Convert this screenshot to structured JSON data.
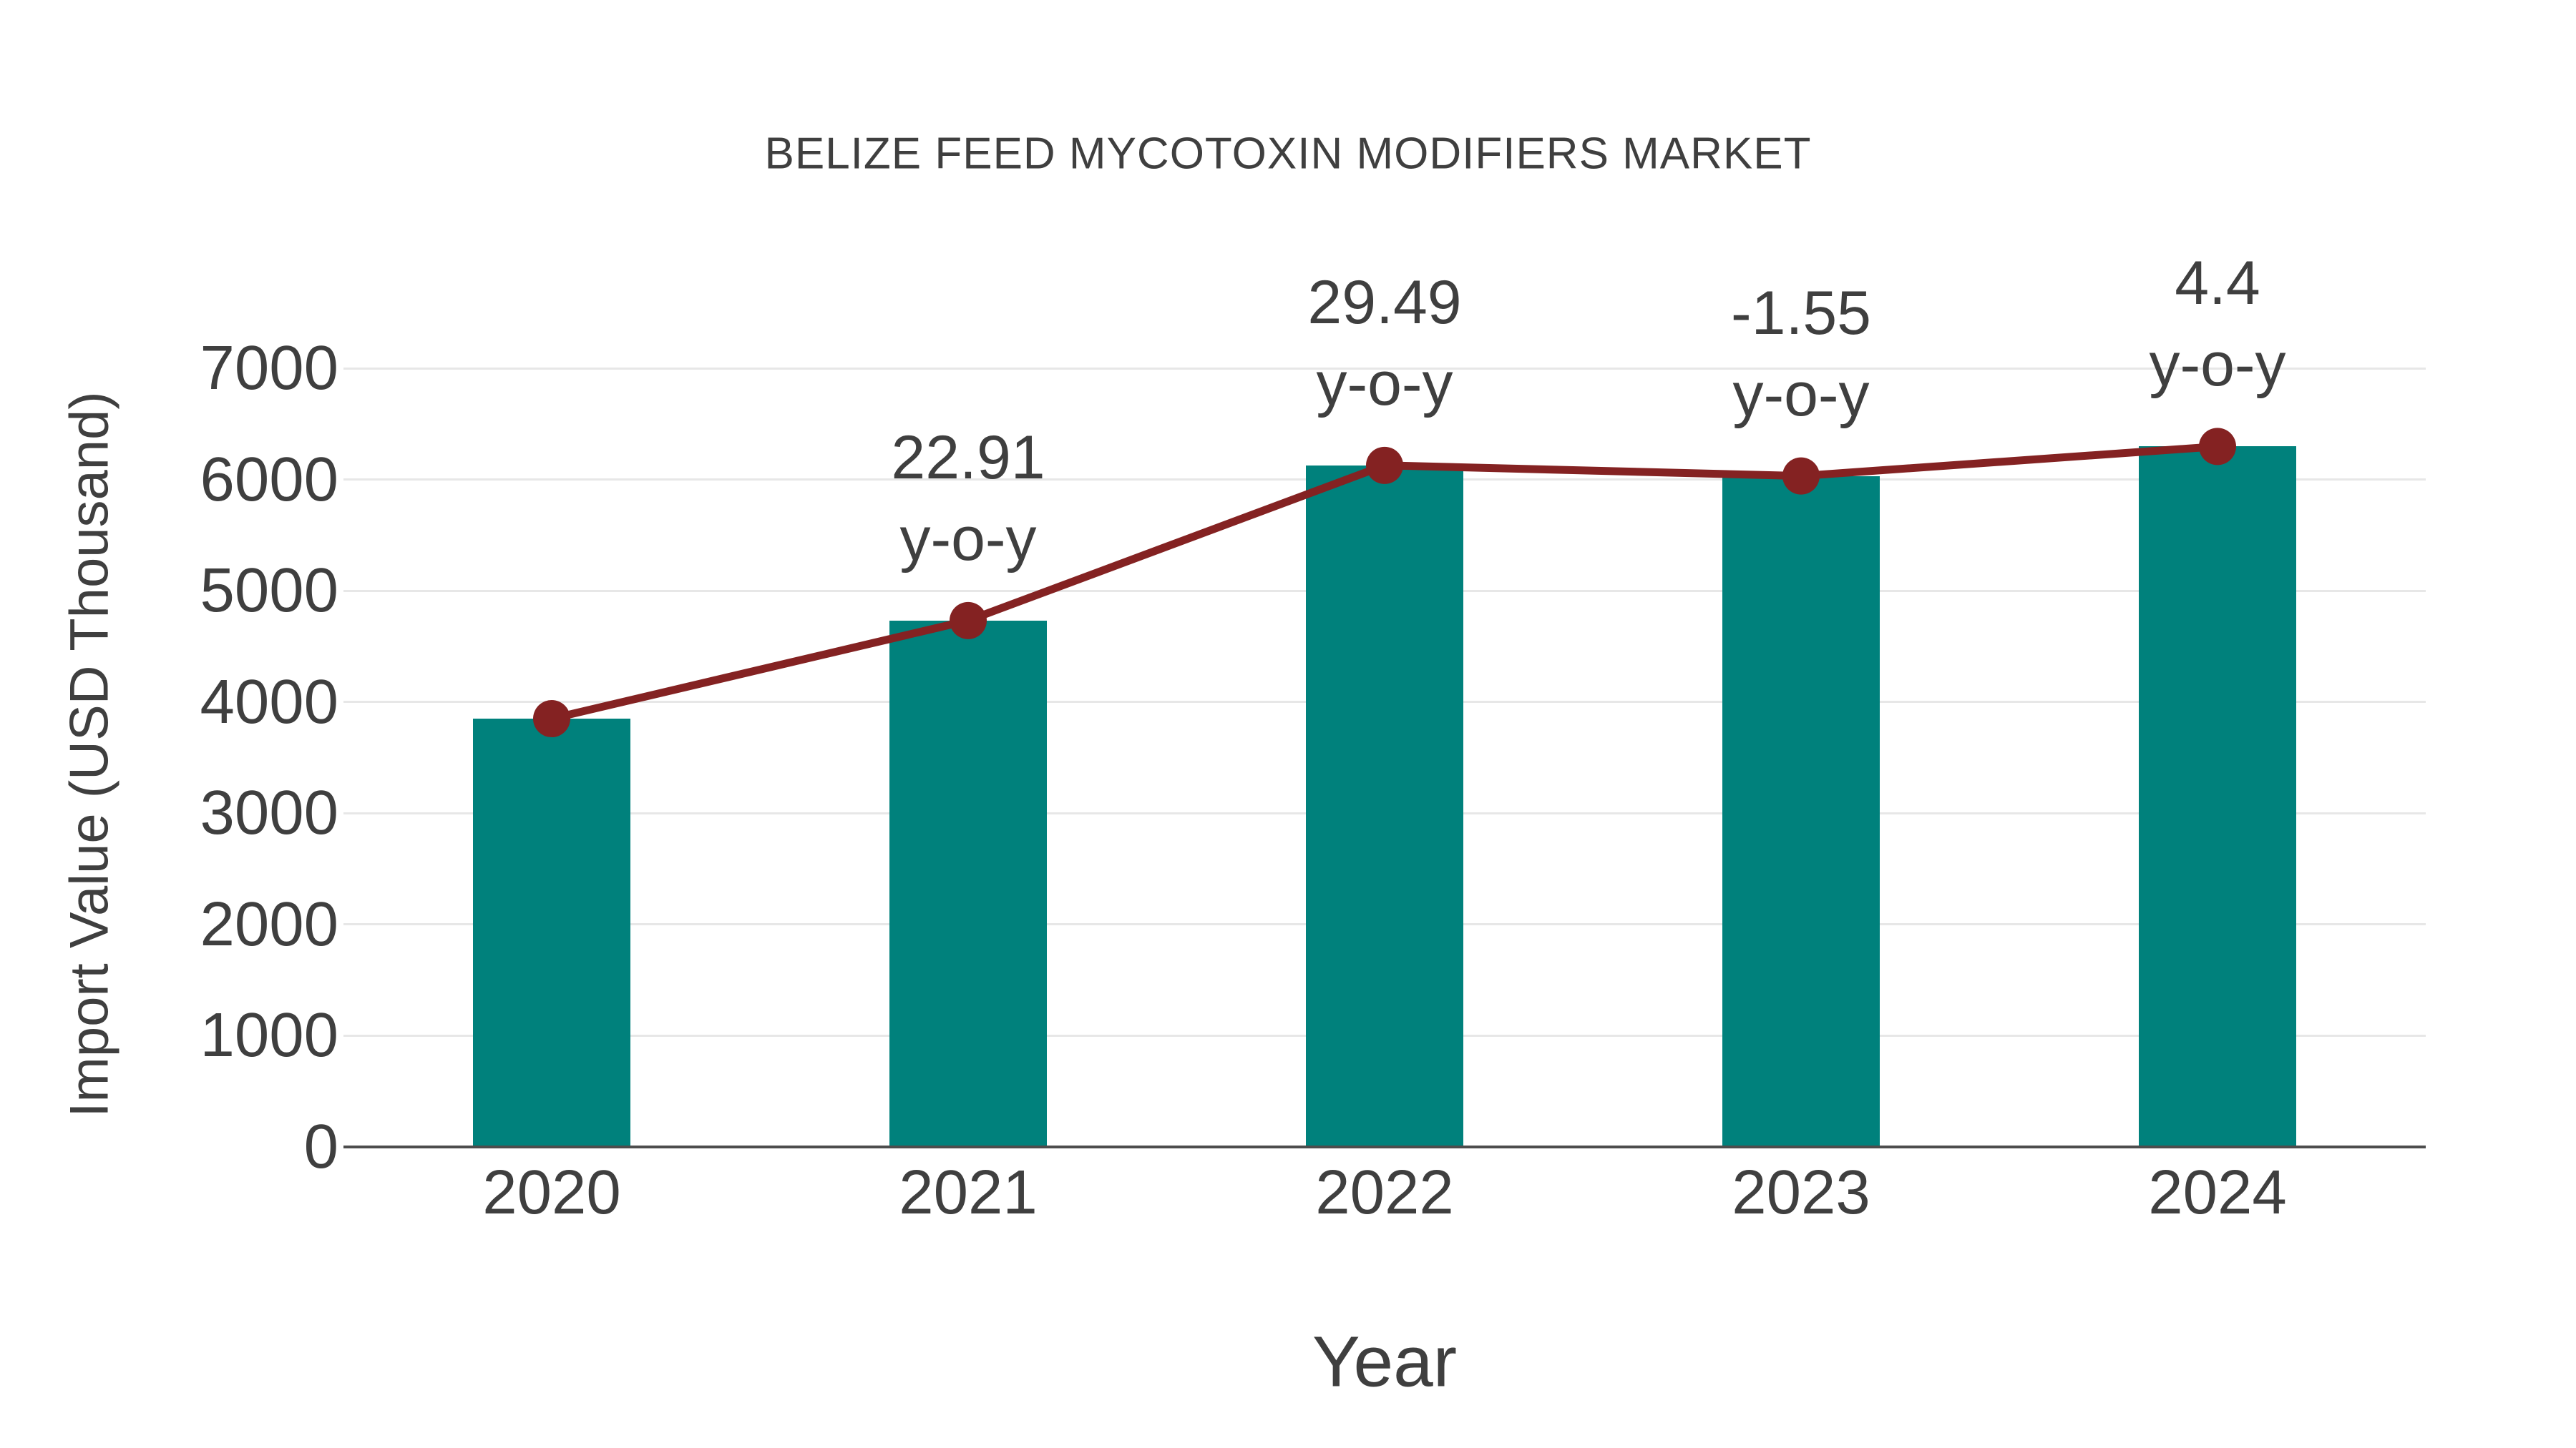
{
  "title": "BELIZE FEED MYCOTOXIN MODIFIERS MARKET",
  "chart_data": {
    "type": "bar",
    "title": "BELIZE FEED MYCOTOXIN MODIFIERS MARKET",
    "xlabel": "Year",
    "ylabel": "Import Value (USD Thousand)",
    "categories": [
      "2020",
      "2021",
      "2022",
      "2023",
      "2024"
    ],
    "series": [
      {
        "name": "Import Value",
        "type": "bar",
        "values": [
          3850,
          4732,
          6127,
          6032,
          6297
        ]
      },
      {
        "name": "Trend",
        "type": "line",
        "values": [
          3850,
          4732,
          6127,
          6032,
          6297
        ]
      }
    ],
    "annotations": [
      {
        "category": "2021",
        "value": "22.91",
        "suffix": "y-o-y"
      },
      {
        "category": "2022",
        "value": "29.49",
        "suffix": "y-o-y"
      },
      {
        "category": "2023",
        "value": "-1.55",
        "suffix": "y-o-y"
      },
      {
        "category": "2024",
        "value": "4.4",
        "suffix": "y-o-y"
      }
    ],
    "ylim": [
      0,
      7000
    ],
    "yticks": [
      0,
      1000,
      2000,
      3000,
      4000,
      5000,
      6000,
      7000
    ],
    "grid": true,
    "legend_position": "none"
  },
  "colors": {
    "bar": "#00817C",
    "line": "#842222",
    "marker": "#842222",
    "text": "#3f3f3f",
    "axis": "#4d4d4d",
    "gridline": "#e7e7e7",
    "background": "#ffffff"
  }
}
